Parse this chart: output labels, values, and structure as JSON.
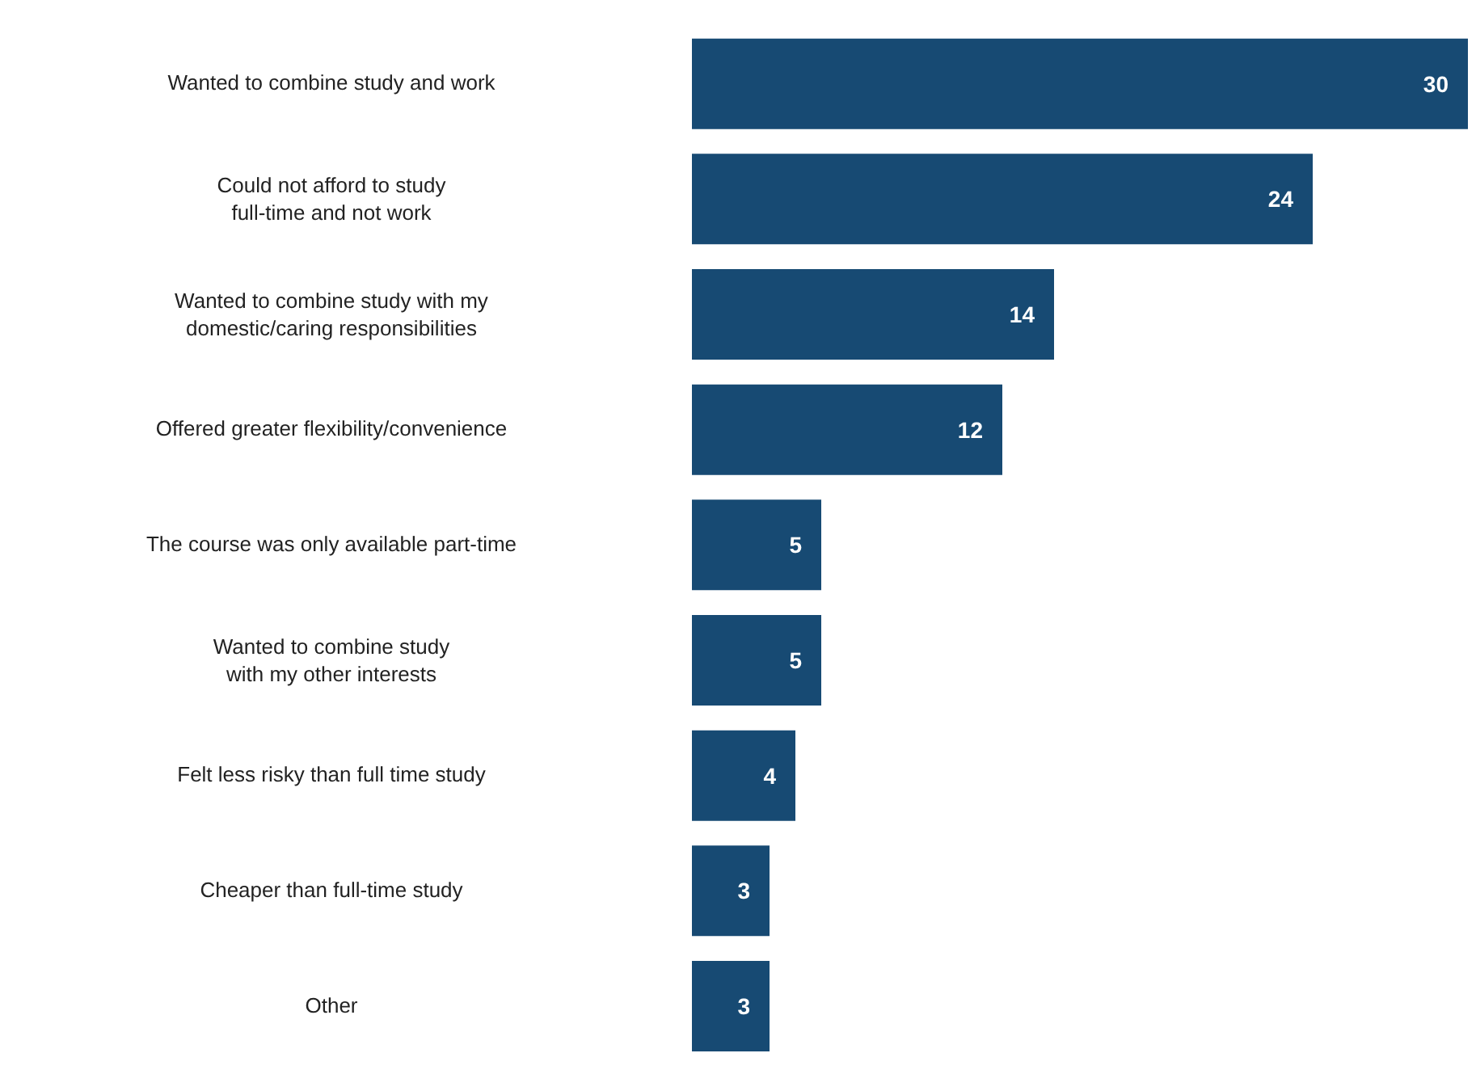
{
  "chart_data": {
    "type": "bar",
    "orientation": "horizontal",
    "data_labels": true,
    "grid": false,
    "legend": false,
    "categories": [
      "Wanted to combine study and work",
      "Could not afford to study full-time and not work",
      "Wanted to combine study with my domestic/caring responsibilities",
      "Offered greater flexibility/convenience",
      "The course was only available part-time",
      "Wanted to combine study with my other interests",
      "Felt less risky than full time study",
      "Cheaper than full-time study",
      "Other"
    ],
    "values": [
      30,
      24,
      14,
      12,
      5,
      5,
      4,
      3,
      3
    ],
    "color": "#174a73"
  }
}
